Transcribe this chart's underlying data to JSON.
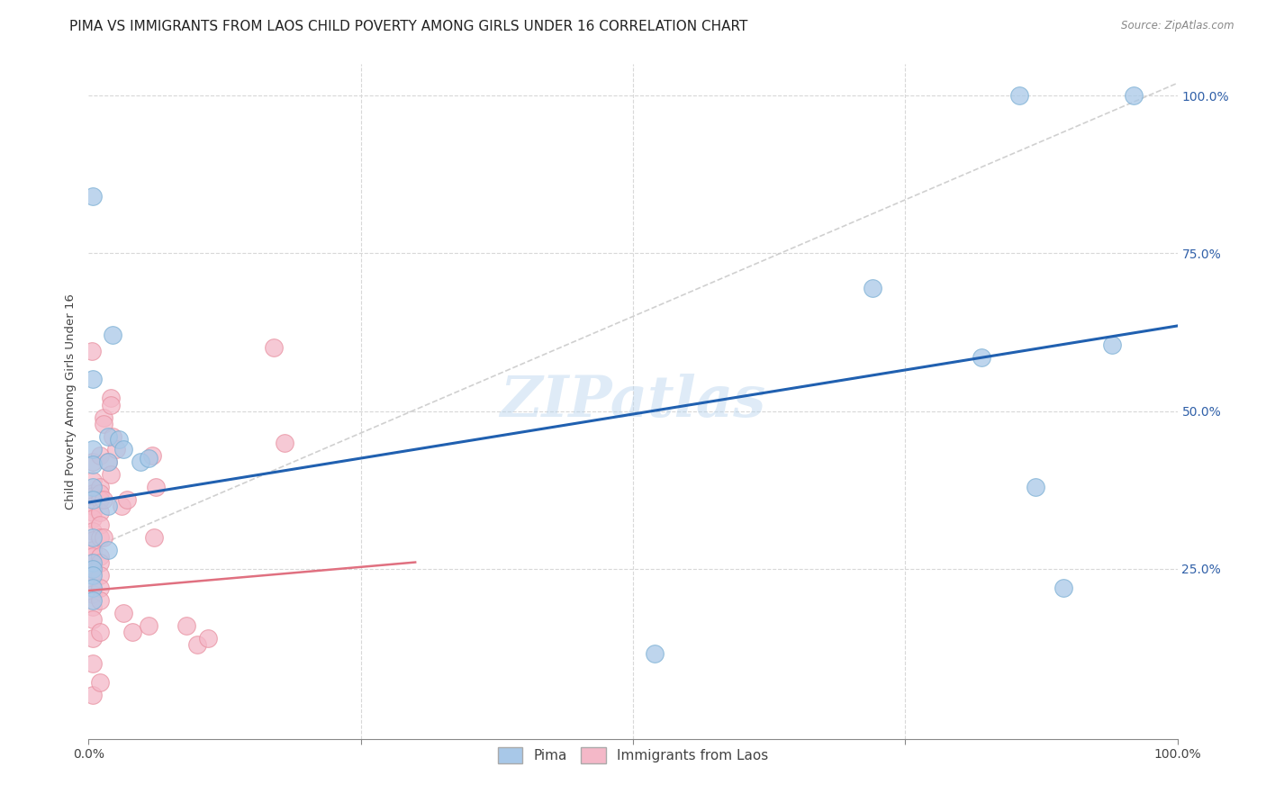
{
  "title": "PIMA VS IMMIGRANTS FROM LAOS CHILD POVERTY AMONG GIRLS UNDER 16 CORRELATION CHART",
  "source": "Source: ZipAtlas.com",
  "ylabel": "Child Poverty Among Girls Under 16",
  "xlim": [
    0,
    1.0
  ],
  "ylim": [
    -0.02,
    1.05
  ],
  "xtick_values": [
    0.0,
    0.25,
    0.5,
    0.75,
    1.0
  ],
  "xtick_labels_ends": [
    "0.0%",
    "100.0%"
  ],
  "ytick_values": [
    0.25,
    0.5,
    0.75,
    1.0
  ],
  "ytick_right_labels": [
    "25.0%",
    "50.0%",
    "75.0%",
    "100.0%"
  ],
  "pima_color": "#a8c8e8",
  "laos_color": "#f4b8c8",
  "pima_edge": "#7bafd4",
  "laos_edge": "#e890a0",
  "watermark": "ZIPatlas",
  "pima_line_color": "#2060b0",
  "laos_line_color": "#e07080",
  "dashed_line_color": "#c8c8c8",
  "background_color": "#ffffff",
  "grid_color": "#d8d8d8",
  "title_fontsize": 11,
  "axis_label_fontsize": 9.5,
  "tick_fontsize": 10,
  "legend_fontsize": 11,
  "pima_points": [
    [
      0.004,
      0.84
    ],
    [
      0.004,
      0.55
    ],
    [
      0.004,
      0.44
    ],
    [
      0.004,
      0.415
    ],
    [
      0.004,
      0.38
    ],
    [
      0.004,
      0.36
    ],
    [
      0.004,
      0.3
    ],
    [
      0.004,
      0.26
    ],
    [
      0.004,
      0.25
    ],
    [
      0.004,
      0.24
    ],
    [
      0.004,
      0.22
    ],
    [
      0.004,
      0.2
    ],
    [
      0.018,
      0.46
    ],
    [
      0.018,
      0.42
    ],
    [
      0.018,
      0.35
    ],
    [
      0.018,
      0.28
    ],
    [
      0.022,
      0.62
    ],
    [
      0.028,
      0.455
    ],
    [
      0.032,
      0.44
    ],
    [
      0.048,
      0.42
    ],
    [
      0.055,
      0.425
    ],
    [
      0.52,
      0.115
    ],
    [
      0.72,
      0.695
    ],
    [
      0.82,
      0.585
    ],
    [
      0.855,
      1.0
    ],
    [
      0.87,
      0.38
    ],
    [
      0.895,
      0.22
    ],
    [
      0.94,
      0.605
    ],
    [
      0.96,
      1.0
    ]
  ],
  "laos_points": [
    [
      0.003,
      0.595
    ],
    [
      0.004,
      0.42
    ],
    [
      0.004,
      0.39
    ],
    [
      0.004,
      0.37
    ],
    [
      0.004,
      0.365
    ],
    [
      0.004,
      0.36
    ],
    [
      0.004,
      0.35
    ],
    [
      0.004,
      0.34
    ],
    [
      0.004,
      0.33
    ],
    [
      0.004,
      0.31
    ],
    [
      0.004,
      0.295
    ],
    [
      0.004,
      0.28
    ],
    [
      0.004,
      0.27
    ],
    [
      0.004,
      0.26
    ],
    [
      0.004,
      0.245
    ],
    [
      0.004,
      0.23
    ],
    [
      0.004,
      0.21
    ],
    [
      0.004,
      0.19
    ],
    [
      0.004,
      0.17
    ],
    [
      0.004,
      0.14
    ],
    [
      0.004,
      0.1
    ],
    [
      0.004,
      0.05
    ],
    [
      0.01,
      0.43
    ],
    [
      0.01,
      0.38
    ],
    [
      0.01,
      0.37
    ],
    [
      0.01,
      0.36
    ],
    [
      0.01,
      0.34
    ],
    [
      0.01,
      0.32
    ],
    [
      0.01,
      0.3
    ],
    [
      0.01,
      0.27
    ],
    [
      0.01,
      0.26
    ],
    [
      0.01,
      0.24
    ],
    [
      0.01,
      0.22
    ],
    [
      0.01,
      0.2
    ],
    [
      0.01,
      0.15
    ],
    [
      0.01,
      0.07
    ],
    [
      0.014,
      0.49
    ],
    [
      0.014,
      0.48
    ],
    [
      0.014,
      0.36
    ],
    [
      0.014,
      0.3
    ],
    [
      0.018,
      0.42
    ],
    [
      0.02,
      0.52
    ],
    [
      0.02,
      0.51
    ],
    [
      0.02,
      0.4
    ],
    [
      0.022,
      0.46
    ],
    [
      0.025,
      0.44
    ],
    [
      0.03,
      0.35
    ],
    [
      0.032,
      0.18
    ],
    [
      0.035,
      0.36
    ],
    [
      0.04,
      0.15
    ],
    [
      0.055,
      0.16
    ],
    [
      0.058,
      0.43
    ],
    [
      0.06,
      0.3
    ],
    [
      0.062,
      0.38
    ],
    [
      0.09,
      0.16
    ],
    [
      0.1,
      0.13
    ],
    [
      0.11,
      0.14
    ],
    [
      0.17,
      0.6
    ],
    [
      0.18,
      0.45
    ]
  ],
  "pima_trendline": [
    0.0,
    1.0,
    0.355,
    0.635
  ],
  "laos_trendline": [
    0.0,
    0.3,
    0.215,
    0.26
  ],
  "dashed_trendline": [
    0.0,
    1.0,
    0.28,
    1.02
  ]
}
